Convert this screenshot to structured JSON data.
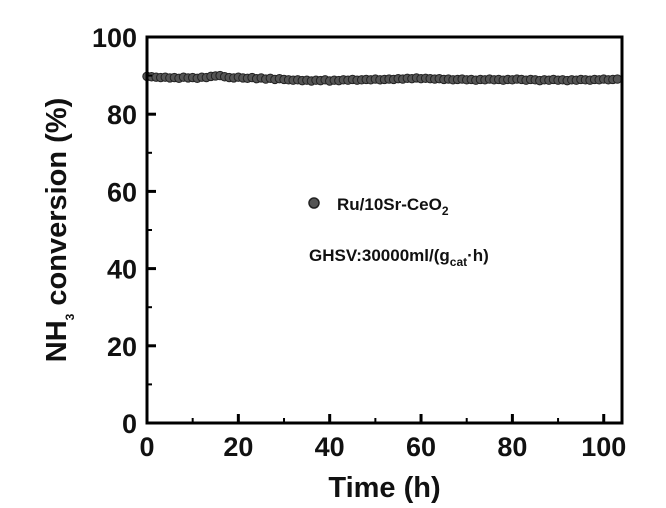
{
  "chart_data": {
    "type": "scatter",
    "xlabel": "Time (h)",
    "ylabel": {
      "base": "NH",
      "sub": "3",
      "rest": " conversion (%)"
    },
    "xlim": [
      0,
      104
    ],
    "ylim": [
      0,
      100
    ],
    "xticks": [
      0,
      20,
      40,
      60,
      80,
      100
    ],
    "yticks": [
      0,
      20,
      40,
      60,
      80,
      100
    ],
    "grid": false,
    "legend_position": "center",
    "series": [
      {
        "name": {
          "base": "Ru/10Sr-CeO",
          "sub": "2"
        },
        "marker": "circle",
        "color": "#555555",
        "x": [
          0,
          1,
          2,
          3,
          4,
          5,
          6,
          7,
          8,
          9,
          10,
          11,
          12,
          13,
          14,
          15,
          16,
          17,
          18,
          19,
          20,
          21,
          22,
          23,
          24,
          25,
          26,
          27,
          28,
          29,
          30,
          31,
          32,
          33,
          34,
          35,
          36,
          37,
          38,
          39,
          40,
          41,
          42,
          43,
          44,
          45,
          46,
          47,
          48,
          49,
          50,
          51,
          52,
          53,
          54,
          55,
          56,
          57,
          58,
          59,
          60,
          61,
          62,
          63,
          64,
          65,
          66,
          67,
          68,
          69,
          70,
          71,
          72,
          73,
          74,
          75,
          76,
          77,
          78,
          79,
          80,
          81,
          82,
          83,
          84,
          85,
          86,
          87,
          88,
          89,
          90,
          91,
          92,
          93,
          94,
          95,
          96,
          97,
          98,
          99,
          100,
          101,
          102,
          103
        ],
        "y": [
          89.8,
          89.7,
          89.6,
          89.5,
          89.6,
          89.4,
          89.5,
          89.3,
          89.6,
          89.4,
          89.5,
          89.3,
          89.6,
          89.5,
          89.8,
          89.9,
          90.0,
          89.7,
          89.5,
          89.4,
          89.6,
          89.4,
          89.3,
          89.5,
          89.2,
          89.4,
          89.1,
          89.3,
          89.0,
          89.2,
          89.0,
          88.9,
          88.8,
          88.9,
          88.7,
          88.8,
          88.6,
          88.8,
          88.7,
          88.9,
          88.6,
          88.8,
          88.7,
          88.9,
          88.8,
          89.0,
          88.8,
          88.9,
          89.0,
          88.9,
          89.1,
          88.9,
          89.0,
          89.1,
          89.0,
          89.2,
          89.1,
          89.3,
          89.2,
          89.4,
          89.2,
          89.3,
          89.2,
          89.1,
          89.2,
          89.0,
          89.1,
          88.9,
          89.0,
          89.1,
          88.9,
          89.0,
          88.8,
          89.0,
          88.9,
          89.1,
          88.9,
          89.0,
          88.8,
          89.0,
          88.9,
          89.1,
          89.0,
          88.8,
          89.0,
          88.9,
          88.7,
          88.9,
          88.8,
          89.0,
          88.8,
          88.9,
          88.7,
          88.9,
          88.8,
          89.0,
          88.9,
          88.8,
          89.0,
          88.9,
          89.1,
          88.9,
          89.0,
          89.1
        ]
      }
    ],
    "annotation": {
      "base": "GHSV:30000ml/(g",
      "sub": "cat",
      "rest": "·h)"
    }
  }
}
